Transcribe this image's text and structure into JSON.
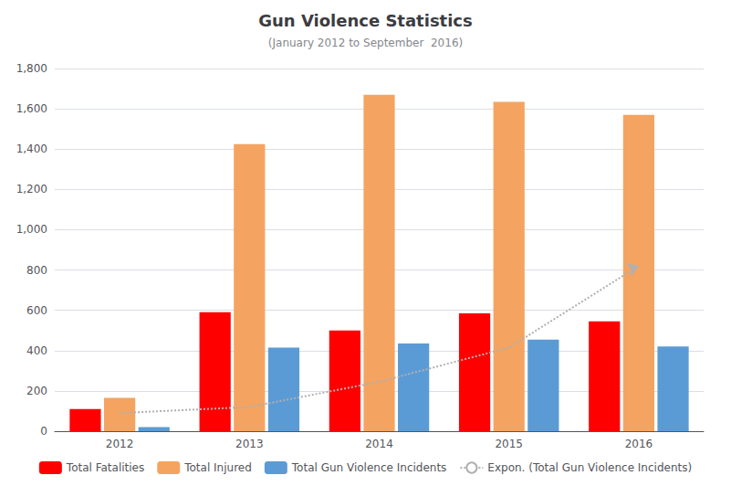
{
  "chart_data": {
    "type": "bar",
    "title": "Gun Violence Statistics",
    "subtitle": "(January 2012 to September  2016)",
    "categories": [
      "2012",
      "2013",
      "2014",
      "2015",
      "2016"
    ],
    "series": [
      {
        "name": "Total Fatalities",
        "color": "#FF0000",
        "values": [
          110,
          590,
          500,
          585,
          545
        ]
      },
      {
        "name": "Total Injured",
        "color": "#F4A460",
        "values": [
          165,
          1425,
          1670,
          1635,
          1570
        ]
      },
      {
        "name": "Total Gun Violence Incidents",
        "color": "#5B9BD5",
        "values": [
          20,
          415,
          435,
          455,
          420
        ]
      },
      {
        "name": "Expon. (Total Gun Violence Incidents)",
        "type": "line",
        "color": "#B0B0B0",
        "line_style": "dotted",
        "marker": "arrow",
        "values": [
          90,
          120,
          245,
          415,
          820
        ]
      }
    ],
    "ylim": [
      0,
      1800
    ],
    "yticks": [
      0,
      200,
      400,
      600,
      800,
      1000,
      1200,
      1400,
      1600,
      1800
    ],
    "grid": true,
    "legend": "bottom"
  }
}
